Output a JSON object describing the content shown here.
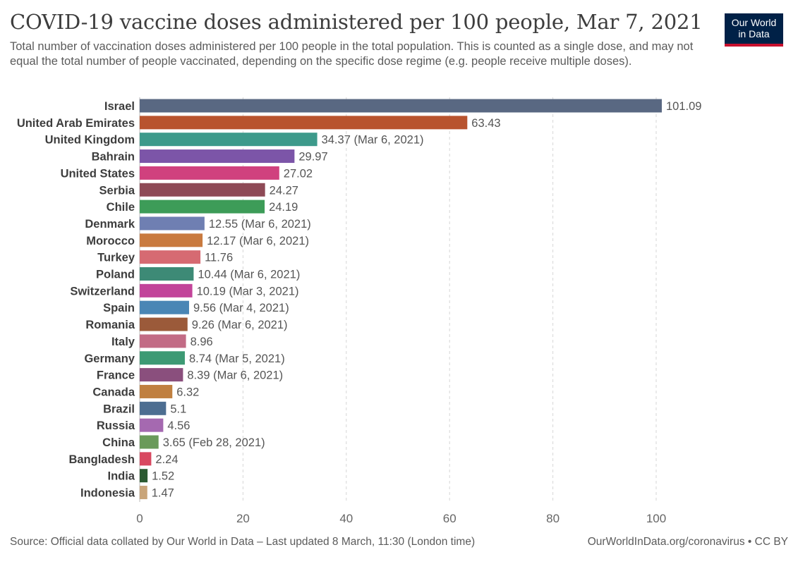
{
  "title": "COVID-19 vaccine doses administered per 100 people, Mar 7, 2021",
  "subtitle": "Total number of vaccination doses administered per 100 people in the total population. This is counted as a single dose, and may not equal the total number of people vaccinated, depending on the specific dose regime (e.g. people receive multiple doses).",
  "logo": {
    "line1": "Our World",
    "line2": "in Data"
  },
  "footer": {
    "source": "Source: Official data collated by Our World in Data – Last updated 8 March, 11:30 (London time)",
    "link": "OurWorldInData.org/coronavirus • CC BY"
  },
  "chart_data": {
    "type": "bar",
    "orientation": "horizontal",
    "title": "COVID-19 vaccine doses administered per 100 people, Mar 7, 2021",
    "xlim": [
      0,
      100
    ],
    "xticks": [
      0,
      20,
      40,
      60,
      80,
      100
    ],
    "grid": "vertical dashed",
    "categories": [
      "Israel",
      "United Arab Emirates",
      "United Kingdom",
      "Bahrain",
      "United States",
      "Serbia",
      "Chile",
      "Denmark",
      "Morocco",
      "Turkey",
      "Poland",
      "Switzerland",
      "Spain",
      "Romania",
      "Italy",
      "Germany",
      "France",
      "Canada",
      "Brazil",
      "Russia",
      "China",
      "Bangladesh",
      "India",
      "Indonesia"
    ],
    "values": [
      101.09,
      63.43,
      34.37,
      29.97,
      27.02,
      24.27,
      24.19,
      12.55,
      12.17,
      11.76,
      10.44,
      10.19,
      9.56,
      9.26,
      8.96,
      8.74,
      8.39,
      6.32,
      5.1,
      4.56,
      3.65,
      2.24,
      1.52,
      1.47
    ],
    "labels": [
      "101.09",
      "63.43",
      "34.37 (Mar 6, 2021)",
      "29.97",
      "27.02",
      "24.27",
      "24.19",
      "12.55 (Mar 6, 2021)",
      "12.17 (Mar 6, 2021)",
      "11.76",
      "10.44 (Mar 6, 2021)",
      "10.19 (Mar 3, 2021)",
      "9.56 (Mar 4, 2021)",
      "9.26 (Mar 6, 2021)",
      "8.96",
      "8.74 (Mar 5, 2021)",
      "8.39 (Mar 6, 2021)",
      "6.32",
      "5.1",
      "4.56",
      "3.65 (Feb 28, 2021)",
      "2.24",
      "1.52",
      "1.47"
    ],
    "colors": [
      "#596882",
      "#b8532e",
      "#3d9a8b",
      "#7c55a8",
      "#d0417e",
      "#8e4a56",
      "#3d9c58",
      "#6f7fb2",
      "#c97a3f",
      "#d66a72",
      "#3d8a76",
      "#c2449a",
      "#4a86b5",
      "#9b5a3a",
      "#c26b85",
      "#3d9a74",
      "#8a4f7d",
      "#c08040",
      "#4d6e91",
      "#a569b0",
      "#6a9a5a",
      "#d84860",
      "#2c5a32",
      "#c9a57a"
    ]
  }
}
